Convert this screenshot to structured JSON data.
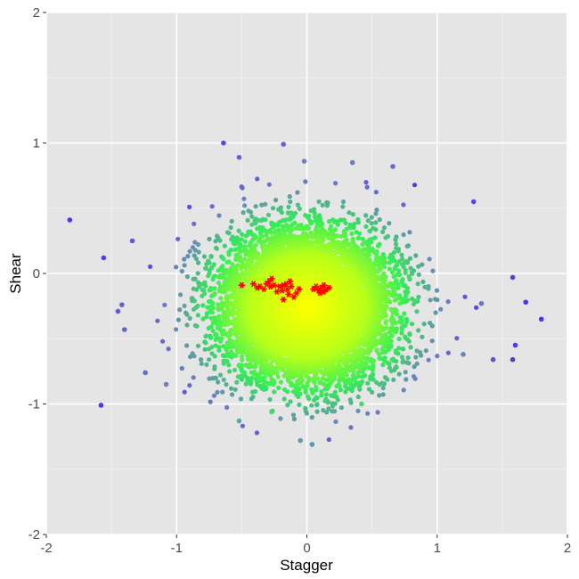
{
  "chart_data": {
    "type": "scatter",
    "title": "",
    "xlabel": "Stagger",
    "ylabel": "Shear",
    "xlim": [
      -2,
      2
    ],
    "ylim": [
      -2,
      2
    ],
    "x_ticks": [
      -2,
      -1,
      0,
      1,
      2
    ],
    "y_ticks": [
      -2,
      -1,
      0,
      1,
      2
    ],
    "x_tick_labels": [
      "-2",
      "-1",
      "0",
      "1",
      "2"
    ],
    "y_tick_labels": [
      "-2",
      "-1",
      "0",
      "1",
      "2"
    ],
    "grid": true,
    "legend": "none",
    "colors": {
      "panel_background": "#e5e5e5",
      "grid_major": "#ffffff",
      "grid_minor": "#f2f2f2",
      "density_high": "#ffff00",
      "density_mid": "#b7ff1a",
      "density_low": "#33ee55",
      "sparse": "#6f7fbf",
      "outlier": "#4a1fff",
      "highlight": "#ff0000"
    },
    "cloud": {
      "description_stats": {
        "center_x": 0.0,
        "center_y": -0.25,
        "sd_x": 0.32,
        "sd_y": 0.28,
        "approx_points": 9000
      }
    },
    "series": [
      {
        "marker": "dot",
        "color_scale": "density",
        "points": [
          [
            -1.82,
            0.41
          ],
          [
            -1.58,
            -1.01
          ],
          [
            -1.56,
            0.12
          ],
          [
            1.58,
            -0.03
          ],
          [
            1.68,
            -0.22
          ],
          [
            1.8,
            -0.35
          ],
          [
            1.6,
            -0.55
          ],
          [
            1.58,
            -0.66
          ],
          [
            1.43,
            -0.66
          ],
          [
            1.28,
            0.55
          ],
          [
            1.34,
            -0.23
          ],
          [
            -1.42,
            -0.24
          ],
          [
            -1.45,
            -0.29
          ],
          [
            -1.4,
            -0.43
          ],
          [
            -1.34,
            0.25
          ],
          [
            -0.64,
            1.0
          ],
          [
            -0.18,
            0.99
          ],
          [
            -0.52,
            0.89
          ],
          [
            -0.02,
            0.86
          ],
          [
            0.35,
            0.85
          ],
          [
            0.66,
            0.82
          ],
          [
            -0.27,
            -1.06
          ],
          [
            -0.52,
            -1.13
          ],
          [
            -0.05,
            -1.28
          ],
          [
            0.04,
            -1.31
          ],
          [
            0.42,
            -1.0
          ],
          [
            -1.08,
            -0.85
          ],
          [
            -1.24,
            -0.76
          ],
          [
            1.2,
            -0.62
          ]
        ]
      },
      {
        "marker": "asterisk",
        "color": "#ff0000",
        "points": [
          [
            -0.5,
            -0.09
          ],
          [
            -0.41,
            -0.08
          ],
          [
            -0.38,
            -0.11
          ],
          [
            -0.36,
            -0.1
          ],
          [
            -0.33,
            -0.12
          ],
          [
            -0.31,
            -0.08
          ],
          [
            -0.29,
            -0.06
          ],
          [
            -0.28,
            -0.1
          ],
          [
            -0.27,
            -0.04
          ],
          [
            -0.25,
            -0.09
          ],
          [
            -0.23,
            -0.14
          ],
          [
            -0.21,
            -0.1
          ],
          [
            -0.19,
            -0.13
          ],
          [
            -0.18,
            -0.2
          ],
          [
            -0.16,
            -0.08
          ],
          [
            -0.15,
            -0.12
          ],
          [
            -0.14,
            -0.16
          ],
          [
            -0.13,
            -0.06
          ],
          [
            -0.12,
            -0.1
          ],
          [
            -0.1,
            -0.18
          ],
          [
            -0.08,
            -0.15
          ],
          [
            -0.06,
            -0.12
          ],
          [
            -0.18,
            -0.09
          ],
          [
            0.05,
            -0.12
          ],
          [
            0.07,
            -0.1
          ],
          [
            0.09,
            -0.13
          ],
          [
            0.11,
            -0.11
          ],
          [
            0.13,
            -0.14
          ],
          [
            0.15,
            -0.12
          ],
          [
            0.17,
            -0.11
          ],
          [
            0.1,
            -0.15
          ],
          [
            0.13,
            -0.09
          ]
        ]
      }
    ]
  }
}
